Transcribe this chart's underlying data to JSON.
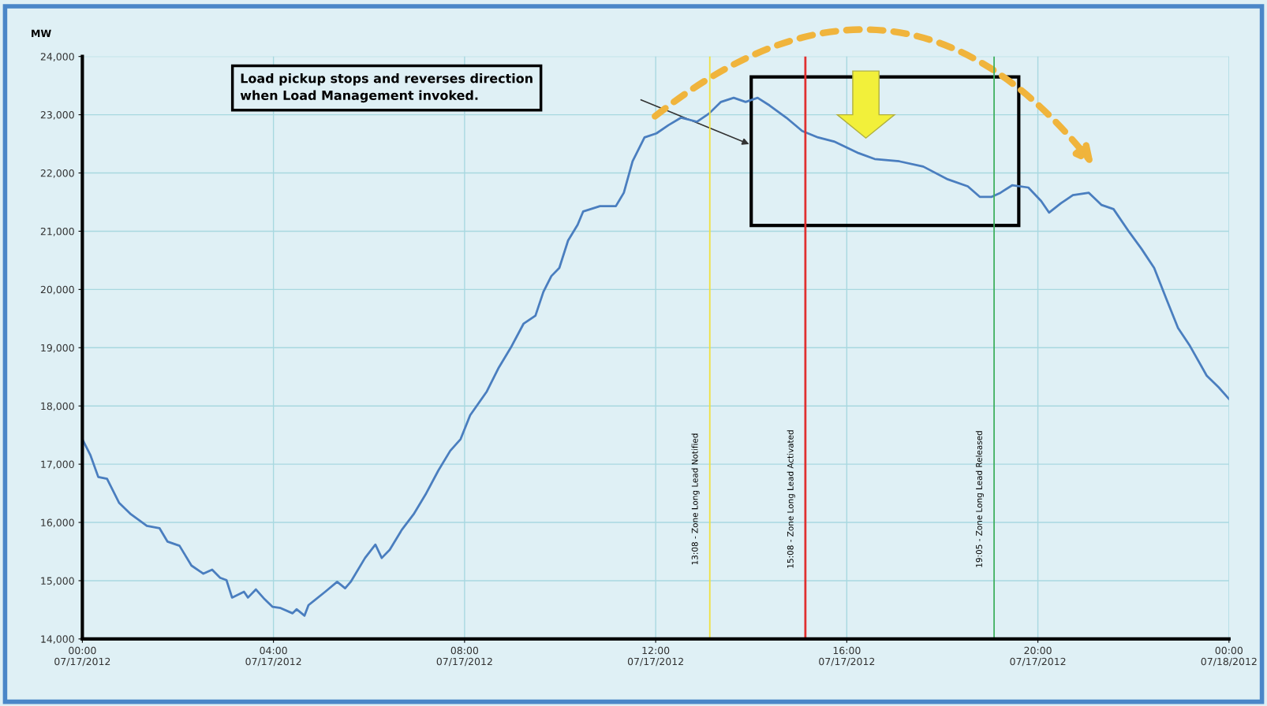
{
  "chart_data": {
    "type": "line",
    "ylabel": "MW",
    "x": [
      "2012-07-17T00:00",
      "2012-07-17T00:10",
      "2012-07-17T00:20",
      "2012-07-17T00:31",
      "2012-07-17T00:46",
      "2012-07-17T01:01",
      "2012-07-17T01:21",
      "2012-07-17T01:37",
      "2012-07-17T01:47",
      "2012-07-17T02:02",
      "2012-07-17T02:17",
      "2012-07-17T02:32",
      "2012-07-17T02:43",
      "2012-07-17T02:53",
      "2012-07-17T03:01",
      "2012-07-17T03:08",
      "2012-07-17T03:23",
      "2012-07-17T03:28",
      "2012-07-17T03:38",
      "2012-07-17T03:49",
      "2012-07-17T03:59",
      "2012-07-17T04:09",
      "2012-07-17T04:24",
      "2012-07-17T04:29",
      "2012-07-17T04:39",
      "2012-07-17T04:44",
      "2012-07-17T05:05",
      "2012-07-17T05:20",
      "2012-07-17T05:30",
      "2012-07-17T05:37",
      "2012-07-17T05:55",
      "2012-07-17T06:08",
      "2012-07-17T06:16",
      "2012-07-17T06:26",
      "2012-07-17T06:41",
      "2012-07-17T06:56",
      "2012-07-17T07:11",
      "2012-07-17T07:27",
      "2012-07-17T07:42",
      "2012-07-17T07:55",
      "2012-07-17T08:07",
      "2012-07-17T08:28",
      "2012-07-17T08:43",
      "2012-07-17T08:58",
      "2012-07-17T09:14",
      "2012-07-17T09:29",
      "2012-07-17T09:39",
      "2012-07-17T09:49",
      "2012-07-17T09:59",
      "2012-07-17T10:10",
      "2012-07-17T10:22",
      "2012-07-17T10:29",
      "2012-07-17T10:50",
      "2012-07-17T11:10",
      "2012-07-17T11:20",
      "2012-07-17T11:31",
      "2012-07-17T11:46",
      "2012-07-17T12:01",
      "2012-07-17T12:16",
      "2012-07-17T12:32",
      "2012-07-17T12:52",
      "2012-07-17T13:07",
      "2012-07-17T13:22",
      "2012-07-17T13:38",
      "2012-07-17T13:53",
      "2012-07-17T14:08",
      "2012-07-17T14:23",
      "2012-07-17T14:44",
      "2012-07-17T15:04",
      "2012-07-17T15:24",
      "2012-07-17T15:44",
      "2012-07-17T16:15",
      "2012-07-17T16:35",
      "2012-07-17T17:06",
      "2012-07-17T17:36",
      "2012-07-17T18:07",
      "2012-07-17T18:32",
      "2012-07-17T18:47",
      "2012-07-17T19:02",
      "2012-07-17T19:13",
      "2012-07-17T19:28",
      "2012-07-17T19:48",
      "2012-07-17T20:04",
      "2012-07-17T20:14",
      "2012-07-17T20:29",
      "2012-07-17T20:44",
      "2012-07-17T21:04",
      "2012-07-17T21:20",
      "2012-07-17T21:35",
      "2012-07-17T21:55",
      "2012-07-17T22:10",
      "2012-07-17T22:26",
      "2012-07-17T22:41",
      "2012-07-17T22:56",
      "2012-07-17T23:11",
      "2012-07-17T23:32",
      "2012-07-17T23:47",
      "2012-07-18T00:00"
    ],
    "series": [
      {
        "color": "#4a7ebf",
        "values": [
          17430,
          17160,
          16780,
          16750,
          16340,
          16140,
          15940,
          15900,
          15670,
          15600,
          15260,
          15120,
          15190,
          15050,
          15010,
          14710,
          14810,
          14710,
          14850,
          14680,
          14550,
          14530,
          14440,
          14510,
          14400,
          14580,
          14810,
          14980,
          14870,
          14980,
          15390,
          15620,
          15390,
          15530,
          15870,
          16140,
          16480,
          16890,
          17230,
          17430,
          17840,
          18250,
          18660,
          19000,
          19410,
          19550,
          19960,
          20230,
          20370,
          20840,
          21110,
          21340,
          21430,
          21430,
          21660,
          22200,
          22610,
          22680,
          22820,
          22950,
          22880,
          23020,
          23220,
          23290,
          23220,
          23290,
          23160,
          22950,
          22720,
          22610,
          22540,
          22340,
          22240,
          22200,
          22110,
          21890,
          21770,
          21590,
          21590,
          21660,
          21790,
          21750,
          21520,
          21320,
          21480,
          21620,
          21660,
          21450,
          21380,
          20980,
          20700,
          20370,
          19850,
          19340,
          19030,
          18520,
          18320,
          18120
        ]
      }
    ],
    "xlim": [
      "2012-07-17T00:00",
      "2012-07-18T00:00"
    ],
    "xticks": [
      {
        "value": "2012-07-17T00:00",
        "label": "00:00\n07/17/2012"
      },
      {
        "value": "2012-07-17T04:00",
        "label": "04:00\n07/17/2012"
      },
      {
        "value": "2012-07-17T08:00",
        "label": "08:00\n07/17/2012"
      },
      {
        "value": "2012-07-17T12:00",
        "label": "12:00\n07/17/2012"
      },
      {
        "value": "2012-07-17T16:00",
        "label": "16:00\n07/17/2012"
      },
      {
        "value": "2012-07-17T20:00",
        "label": "20:00\n07/17/2012"
      },
      {
        "value": "2012-07-18T00:00",
        "label": "00:00\n07/18/2012"
      }
    ],
    "ylim": [
      14000,
      24000
    ],
    "yticks": [
      {
        "value": 14000,
        "label": "14,000"
      },
      {
        "value": 15000,
        "label": "15,000"
      },
      {
        "value": 16000,
        "label": "16,000"
      },
      {
        "value": 17000,
        "label": "17,000"
      },
      {
        "value": 18000,
        "label": "18,000"
      },
      {
        "value": 19000,
        "label": "19,000"
      },
      {
        "value": 20000,
        "label": "20,000"
      },
      {
        "value": 21000,
        "label": "21,000"
      },
      {
        "value": 22000,
        "label": "22,000"
      },
      {
        "value": 23000,
        "label": "23,000"
      },
      {
        "value": 24000,
        "label": "24,000"
      }
    ],
    "ref_lines": [
      {
        "axis": "x",
        "value": "2012-07-17T13:08",
        "label": "13:08 - Zone Long Lead Notified",
        "color": "#f0e040"
      },
      {
        "axis": "x",
        "value": "2012-07-17T15:08",
        "label": "15:08 - Zone Long Lead Activated",
        "color": "#e03030"
      },
      {
        "axis": "x",
        "value": "2012-07-17T19:05",
        "label": "19:05 - Zone Long Lead Released",
        "color": "#40b060"
      }
    ],
    "annotations": [
      "Load pickup stops and reverses direction\nwhen Load Management invoked."
    ],
    "grid": true,
    "marker": "none",
    "line_style": "solid",
    "legend": false
  }
}
